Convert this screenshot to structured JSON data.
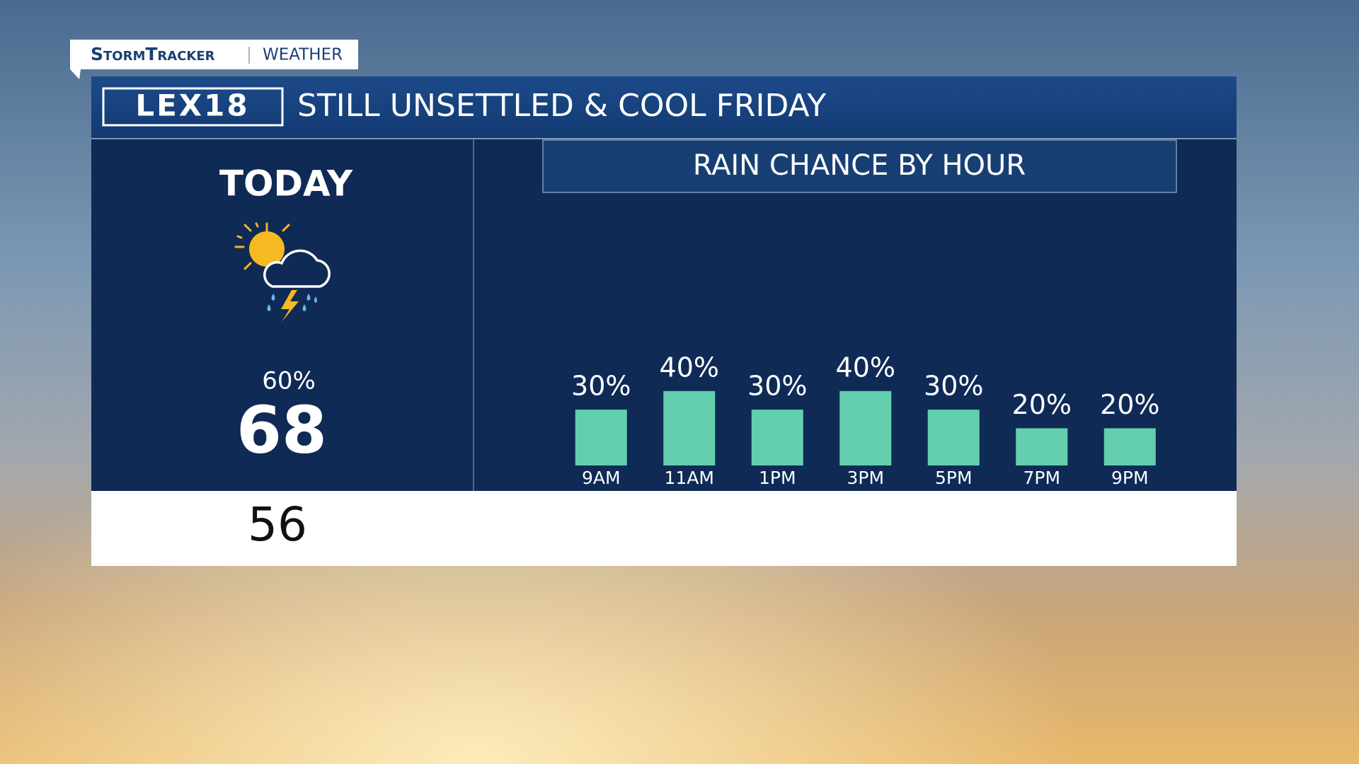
{
  "tab": {
    "brand": "StormTracker",
    "section": "WEATHER"
  },
  "header": {
    "logo": "LEX18",
    "title": "STILL UNSETTLED & COOL FRIDAY"
  },
  "today": {
    "label": "TODAY",
    "precip": "60%",
    "high": 68,
    "low": 56
  },
  "chart_data": {
    "type": "bar",
    "title": "RAIN CHANCE BY HOUR",
    "categories": [
      "9AM",
      "11AM",
      "1PM",
      "3PM",
      "5PM",
      "7PM",
      "9PM"
    ],
    "values": [
      30,
      40,
      30,
      40,
      30,
      20,
      20
    ],
    "value_labels": [
      "30%",
      "40%",
      "30%",
      "40%",
      "30%",
      "20%",
      "20%"
    ],
    "color": "#63cfae"
  }
}
